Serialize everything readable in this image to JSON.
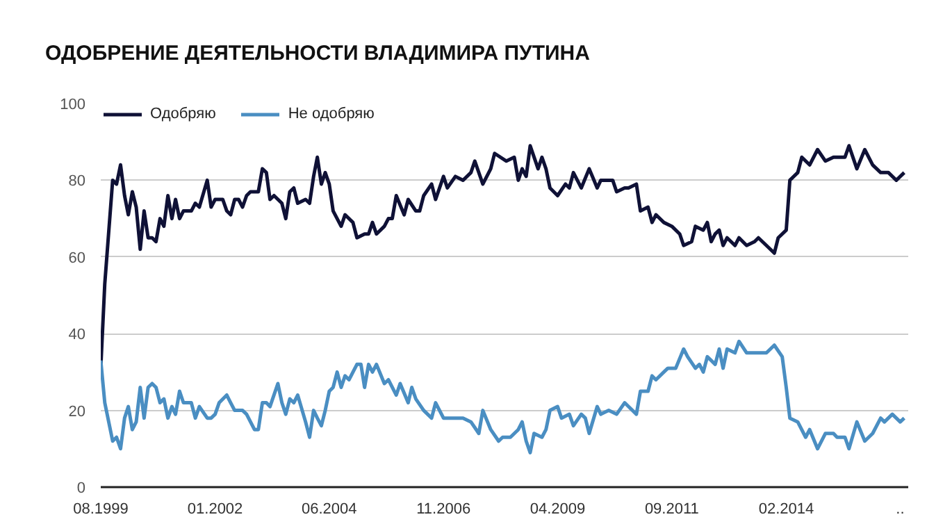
{
  "chart_data": {
    "type": "line",
    "title": "ОДОБРЕНИЕ ДЕЯТЕЛЬНОСТИ ВЛАДИМИРА ПУТИНА",
    "xlim": [
      "1999-08",
      "2016-09"
    ],
    "xticks": [
      {
        "value": "1999-08",
        "label": "08.1999"
      },
      {
        "value": "2002-01",
        "label": "01.2002"
      },
      {
        "value": "2004-06",
        "label": "06.2004"
      },
      {
        "value": "2006-11",
        "label": "11.2006"
      },
      {
        "value": "2009-04",
        "label": "04.2009"
      },
      {
        "value": "2011-09",
        "label": "09.2011"
      },
      {
        "value": "2014-02",
        "label": "02.2014"
      },
      {
        "value": "2016-07",
        "label": ".."
      }
    ],
    "ylim": [
      0,
      100
    ],
    "yticks": [
      0,
      20,
      40,
      60,
      80,
      100
    ],
    "grid": "y",
    "legend": "top left",
    "marker": "none",
    "line_style": "solid",
    "series": [
      {
        "name": "Одобряю",
        "color": "#0f1136",
        "x": [
          "1999-08",
          "1999-09",
          "1999-11",
          "1999-12",
          "2000-01",
          "2000-02",
          "2000-03",
          "2000-04",
          "2000-05",
          "2000-06",
          "2000-07",
          "2000-08",
          "2000-09",
          "2000-10",
          "2000-11",
          "2000-12",
          "2001-01",
          "2001-02",
          "2001-03",
          "2001-04",
          "2001-05",
          "2001-07",
          "2001-08",
          "2001-09",
          "2001-11",
          "2001-12",
          "2002-01",
          "2002-03",
          "2002-04",
          "2002-05",
          "2002-06",
          "2002-07",
          "2002-08",
          "2002-09",
          "2002-10",
          "2002-12",
          "2003-01",
          "2003-02",
          "2003-03",
          "2003-04",
          "2003-06",
          "2003-07",
          "2003-08",
          "2003-09",
          "2003-10",
          "2003-12",
          "2004-01",
          "2004-02",
          "2004-03",
          "2004-04",
          "2004-05",
          "2004-06",
          "2004-07",
          "2004-09",
          "2004-10",
          "2004-12",
          "2005-01",
          "2005-03",
          "2005-04",
          "2005-05",
          "2005-06",
          "2005-08",
          "2005-09",
          "2005-10",
          "2005-11",
          "2006-01",
          "2006-02",
          "2006-04",
          "2006-05",
          "2006-06",
          "2006-08",
          "2006-09",
          "2006-11",
          "2006-12",
          "2007-02",
          "2007-04",
          "2007-06",
          "2007-07",
          "2007-09",
          "2007-11",
          "2007-12",
          "2008-03",
          "2008-05",
          "2008-06",
          "2008-07",
          "2008-08",
          "2008-09",
          "2008-11",
          "2008-12",
          "2009-01",
          "2009-02",
          "2009-04",
          "2009-06",
          "2009-07",
          "2009-08",
          "2009-10",
          "2009-12",
          "2010-02",
          "2010-03",
          "2010-06",
          "2010-07",
          "2010-09",
          "2010-10",
          "2010-12",
          "2011-01",
          "2011-03",
          "2011-04",
          "2011-05",
          "2011-07",
          "2011-09",
          "2011-11",
          "2011-12",
          "2012-02",
          "2012-03",
          "2012-05",
          "2012-06",
          "2012-07",
          "2012-08",
          "2012-09",
          "2012-10",
          "2012-11",
          "2013-01",
          "2013-02",
          "2013-04",
          "2013-06",
          "2013-07",
          "2013-09",
          "2013-11",
          "2013-12",
          "2014-02",
          "2014-03",
          "2014-05",
          "2014-06",
          "2014-08",
          "2014-10",
          "2014-12",
          "2015-02",
          "2015-03",
          "2015-05",
          "2015-06",
          "2015-08",
          "2015-10",
          "2015-12",
          "2016-02",
          "2016-04",
          "2016-06",
          "2016-08"
        ],
        "values": [
          31,
          53,
          80,
          79,
          84,
          76,
          71,
          77,
          73,
          62,
          72,
          65,
          65,
          64,
          70,
          68,
          76,
          70,
          75,
          70,
          72,
          72,
          74,
          73,
          80,
          73,
          75,
          75,
          72,
          71,
          75,
          75,
          73,
          76,
          77,
          77,
          83,
          82,
          75,
          76,
          74,
          70,
          77,
          78,
          74,
          75,
          74,
          81,
          86,
          79,
          82,
          79,
          72,
          68,
          71,
          69,
          65,
          66,
          66,
          69,
          66,
          68,
          70,
          70,
          76,
          71,
          75,
          72,
          72,
          76,
          79,
          75,
          81,
          78,
          81,
          80,
          82,
          85,
          79,
          83,
          87,
          85,
          86,
          80,
          83,
          81,
          89,
          83,
          86,
          83,
          78,
          76,
          79,
          78,
          82,
          78,
          83,
          78,
          80,
          80,
          77,
          78,
          78,
          79,
          72,
          73,
          69,
          71,
          69,
          68,
          66,
          63,
          64,
          68,
          67,
          69,
          64,
          66,
          67,
          63,
          65,
          63,
          65,
          63,
          64,
          65,
          63,
          61,
          65,
          67,
          80,
          82,
          86,
          84,
          88,
          85,
          86,
          86,
          86,
          89,
          83,
          88,
          84,
          82,
          82,
          80,
          82
        ]
      },
      {
        "name": "Не одобряю",
        "color": "#4a8ec2",
        "x": [
          "1999-08",
          "1999-09",
          "1999-11",
          "1999-12",
          "2000-01",
          "2000-02",
          "2000-03",
          "2000-04",
          "2000-05",
          "2000-06",
          "2000-07",
          "2000-08",
          "2000-09",
          "2000-10",
          "2000-11",
          "2000-12",
          "2001-01",
          "2001-02",
          "2001-03",
          "2001-04",
          "2001-05",
          "2001-07",
          "2001-08",
          "2001-09",
          "2001-11",
          "2001-12",
          "2002-01",
          "2002-02",
          "2002-04",
          "2002-05",
          "2002-06",
          "2002-08",
          "2002-09",
          "2002-11",
          "2002-12",
          "2003-01",
          "2003-02",
          "2003-03",
          "2003-05",
          "2003-06",
          "2003-07",
          "2003-08",
          "2003-09",
          "2003-10",
          "2003-12",
          "2004-01",
          "2004-02",
          "2004-03",
          "2004-04",
          "2004-05",
          "2004-06",
          "2004-07",
          "2004-08",
          "2004-09",
          "2004-10",
          "2004-11",
          "2005-01",
          "2005-02",
          "2005-03",
          "2005-04",
          "2005-05",
          "2005-06",
          "2005-08",
          "2005-09",
          "2005-11",
          "2005-12",
          "2006-02",
          "2006-03",
          "2006-04",
          "2006-06",
          "2006-08",
          "2006-09",
          "2006-11",
          "2007-01",
          "2007-03",
          "2007-04",
          "2007-06",
          "2007-08",
          "2007-09",
          "2007-11",
          "2008-01",
          "2008-02",
          "2008-04",
          "2008-06",
          "2008-07",
          "2008-08",
          "2008-09",
          "2008-10",
          "2008-12",
          "2009-01",
          "2009-02",
          "2009-04",
          "2009-05",
          "2009-07",
          "2009-08",
          "2009-10",
          "2009-11",
          "2009-12",
          "2010-02",
          "2010-03",
          "2010-05",
          "2010-07",
          "2010-09",
          "2010-10",
          "2010-12",
          "2011-01",
          "2011-03",
          "2011-04",
          "2011-05",
          "2011-07",
          "2011-08",
          "2011-10",
          "2011-12",
          "2012-01",
          "2012-03",
          "2012-04",
          "2012-05",
          "2012-06",
          "2012-08",
          "2012-09",
          "2012-10",
          "2012-11",
          "2013-01",
          "2013-02",
          "2013-04",
          "2013-06",
          "2013-07",
          "2013-09",
          "2013-11",
          "2014-01",
          "2014-02",
          "2014-03",
          "2014-05",
          "2014-07",
          "2014-08",
          "2014-10",
          "2014-12",
          "2015-02",
          "2015-03",
          "2015-05",
          "2015-06",
          "2015-08",
          "2015-10",
          "2015-12",
          "2016-02",
          "2016-03",
          "2016-05",
          "2016-07",
          "2016-08"
        ],
        "values": [
          33,
          22,
          12,
          13,
          10,
          18,
          21,
          15,
          17,
          26,
          18,
          26,
          27,
          26,
          22,
          23,
          18,
          21,
          19,
          25,
          22,
          22,
          18,
          21,
          18,
          18,
          19,
          22,
          24,
          22,
          20,
          20,
          19,
          15,
          15,
          22,
          22,
          21,
          27,
          22,
          19,
          23,
          22,
          24,
          17,
          13,
          20,
          18,
          16,
          20,
          25,
          26,
          30,
          26,
          29,
          28,
          32,
          32,
          26,
          32,
          30,
          32,
          27,
          28,
          24,
          27,
          22,
          26,
          23,
          20,
          18,
          22,
          18,
          18,
          18,
          18,
          17,
          14,
          20,
          15,
          12,
          13,
          13,
          15,
          17,
          12,
          9,
          14,
          13,
          15,
          20,
          21,
          18,
          19,
          16,
          19,
          18,
          14,
          21,
          19,
          20,
          19,
          22,
          21,
          19,
          25,
          25,
          29,
          28,
          30,
          31,
          31,
          36,
          34,
          31,
          32,
          30,
          34,
          32,
          36,
          31,
          36,
          35,
          38,
          35,
          35,
          35,
          35,
          37,
          34,
          26,
          18,
          17,
          13,
          15,
          10,
          14,
          14,
          13,
          13,
          10,
          17,
          12,
          14,
          18,
          17,
          19,
          17,
          18
        ]
      }
    ]
  }
}
